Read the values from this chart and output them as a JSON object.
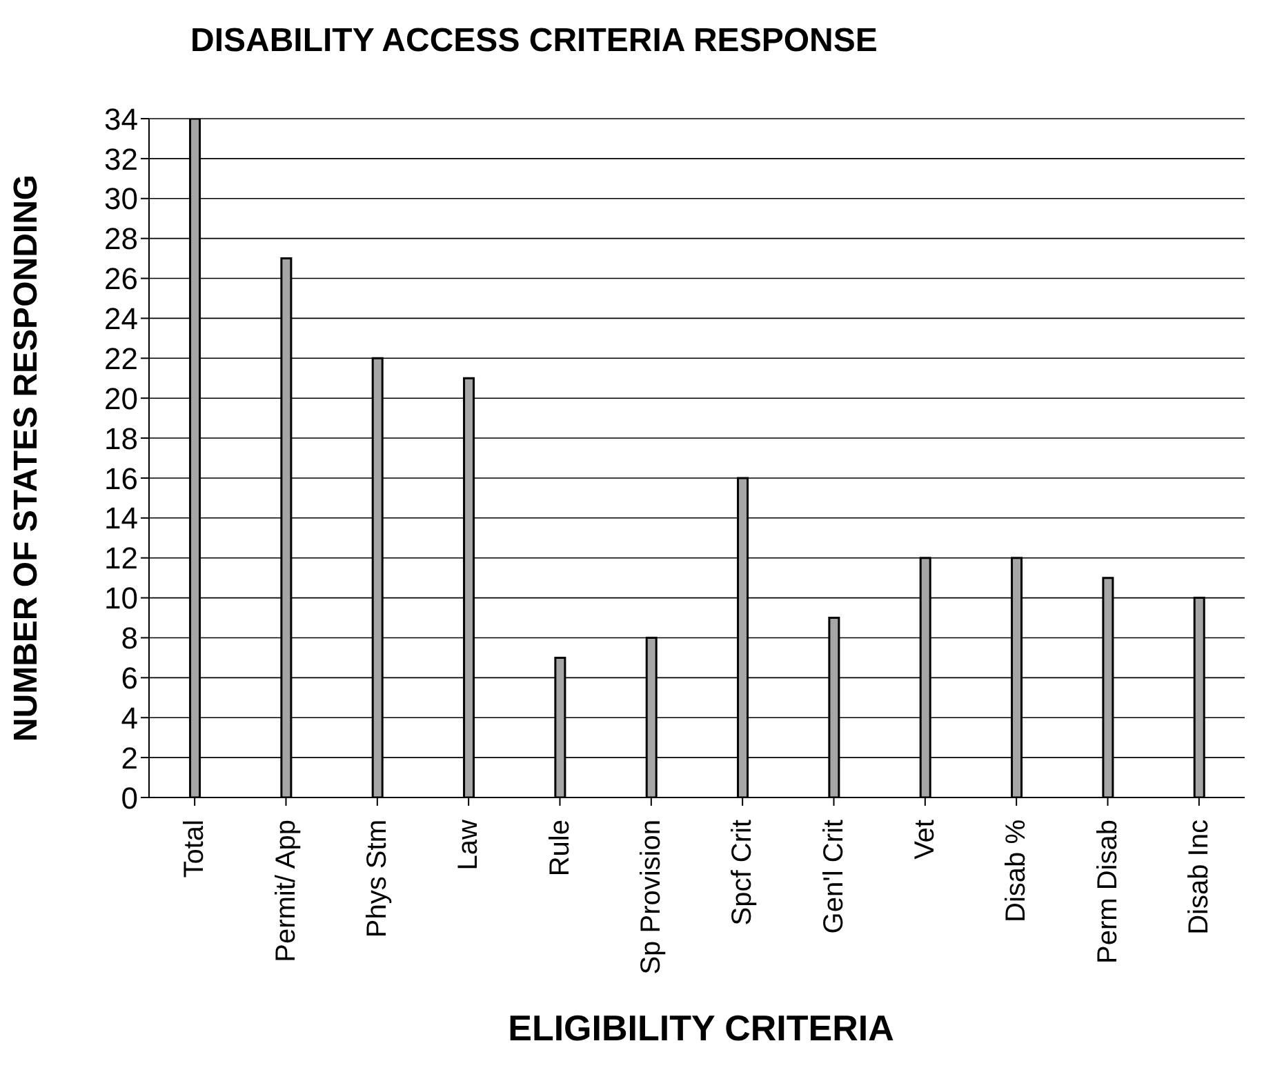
{
  "chart_data": {
    "type": "bar",
    "title": "DISABILITY ACCESS CRITERIA RESPONSE",
    "xlabel": "ELIGIBILITY CRITERIA",
    "ylabel": "NUMBER OF STATES RESPONDING",
    "categories": [
      "Total",
      "Permit/ App",
      "Phys Stm",
      "Law",
      "Rule",
      "Sp Provision",
      "Spcf Crit",
      "Gen'l Crit",
      "Vet",
      "Disab %",
      "Perm Disab",
      "Disab Inc"
    ],
    "values": [
      34,
      27,
      22,
      21,
      7,
      8,
      16,
      9,
      12,
      12,
      11,
      10
    ],
    "color": "#a6a6a6",
    "ylim": [
      0,
      34
    ],
    "yticks": [
      0,
      2,
      4,
      6,
      8,
      10,
      12,
      14,
      16,
      18,
      20,
      22,
      24,
      26,
      28,
      30,
      32,
      34
    ],
    "grid": "y"
  }
}
